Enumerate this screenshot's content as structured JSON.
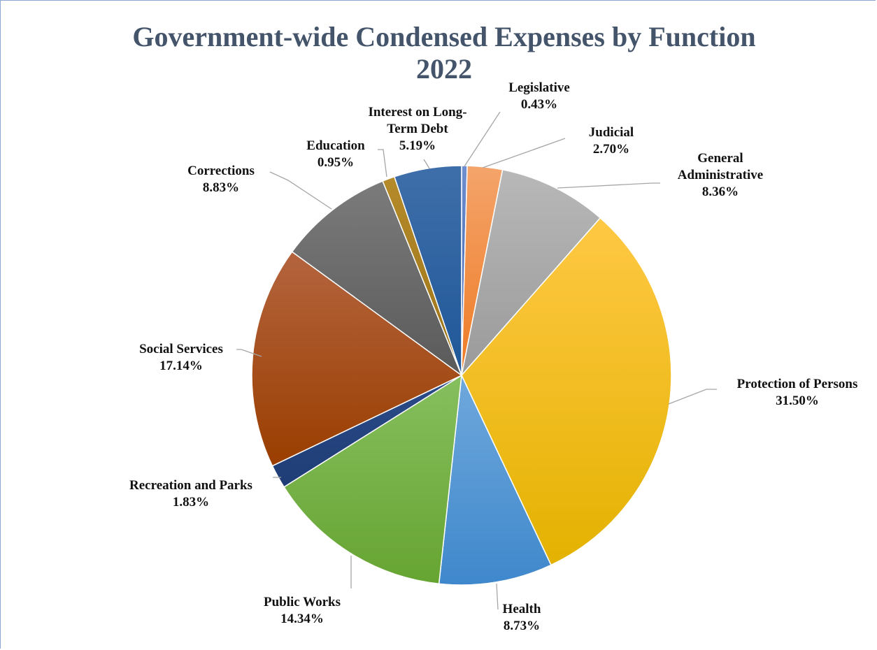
{
  "chart_data": {
    "type": "pie",
    "title_lines": [
      "Government-wide Condensed Expenses by Function",
      "2022"
    ],
    "slices": [
      {
        "label_lines": [
          "Legislative",
          "0.43%"
        ],
        "name": "Legislative",
        "value": 0.43,
        "color_top": "#6f8fd0",
        "color_bottom": "#3b5ea8"
      },
      {
        "label_lines": [
          "Judicial",
          "2.70%"
        ],
        "name": "Judicial",
        "value": 2.7,
        "color_top": "#f4a46b",
        "color_bottom": "#ee7b25"
      },
      {
        "label_lines": [
          "General",
          "Administrative",
          "8.36%"
        ],
        "name": "General Administrative",
        "value": 8.36,
        "color_top": "#b8b8b8",
        "color_bottom": "#9a9a9a"
      },
      {
        "label_lines": [
          "Protection of Persons",
          "31.50%"
        ],
        "name": "Protection of Persons",
        "value": 31.5,
        "color_top": "#ffc844",
        "color_bottom": "#e3b200"
      },
      {
        "label_lines": [
          "Health",
          "8.73%"
        ],
        "name": "Health",
        "value": 8.73,
        "color_top": "#6fa8dc",
        "color_bottom": "#3f88cc"
      },
      {
        "label_lines": [
          "Public Works",
          "14.34%"
        ],
        "name": "Public Works",
        "value": 14.34,
        "color_top": "#86bf5e",
        "color_bottom": "#66a432"
      },
      {
        "label_lines": [
          "Recreation and Parks",
          "1.83%"
        ],
        "name": "Recreation and Parks",
        "value": 1.83,
        "color_top": "#2c4d8a",
        "color_bottom": "#1e3c75"
      },
      {
        "label_lines": [
          "Social Services",
          "17.14%"
        ],
        "name": "Social Services",
        "value": 17.14,
        "color_top": "#b4643e",
        "color_bottom": "#9a3e00"
      },
      {
        "label_lines": [
          "Corrections",
          "8.83%"
        ],
        "name": "Corrections",
        "value": 8.83,
        "color_top": "#7b7b7b",
        "color_bottom": "#5a5a5a"
      },
      {
        "label_lines": [
          "Education",
          "0.95%"
        ],
        "name": "Education",
        "value": 0.95,
        "color_top": "#b48a2a",
        "color_bottom": "#9c7418"
      },
      {
        "label_lines": [
          "Interest on Long-",
          "Term Debt",
          "5.19%"
        ],
        "name": "Interest on Long-Term Debt",
        "value": 5.19,
        "color_top": "#3f6faa",
        "color_bottom": "#1f5798"
      }
    ],
    "start_angle_deg": 0,
    "direction": "clockwise",
    "legend": "none"
  }
}
